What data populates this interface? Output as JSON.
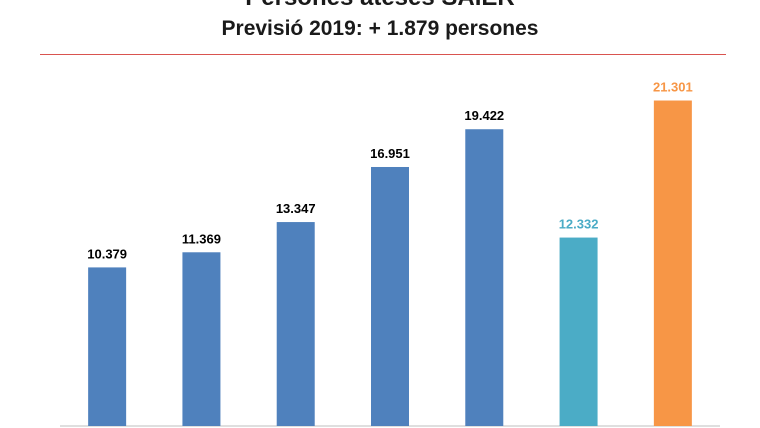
{
  "title": {
    "line1": "Persones ateses SAIER",
    "line2": "Previsió 2019: + 1.879 persones"
  },
  "colors": {
    "primary": "#4f81bd",
    "secondary": "#4bacc6",
    "highlight": "#f79646",
    "divider": "#d9534f"
  },
  "chart_data": {
    "type": "bar",
    "title": "Persones ateses SAIER",
    "subtitle": "Previsió 2019: + 1.879 persones",
    "categories": [],
    "values": [
      10379,
      11369,
      13347,
      16951,
      19422,
      12332,
      21301
    ],
    "labels": [
      "10.379",
      "11.369",
      "13.347",
      "16.951",
      "19.422",
      "12.332",
      "21.301"
    ],
    "bar_colors": [
      "#4f81bd",
      "#4f81bd",
      "#4f81bd",
      "#4f81bd",
      "#4f81bd",
      "#4bacc6",
      "#f79646"
    ],
    "label_colors": [
      "#000000",
      "#000000",
      "#000000",
      "#000000",
      "#000000",
      "#4bacc6",
      "#f79646"
    ],
    "ylim": [
      0,
      25000
    ],
    "xlabel": "",
    "ylabel": "",
    "grid": false,
    "legend": false
  }
}
